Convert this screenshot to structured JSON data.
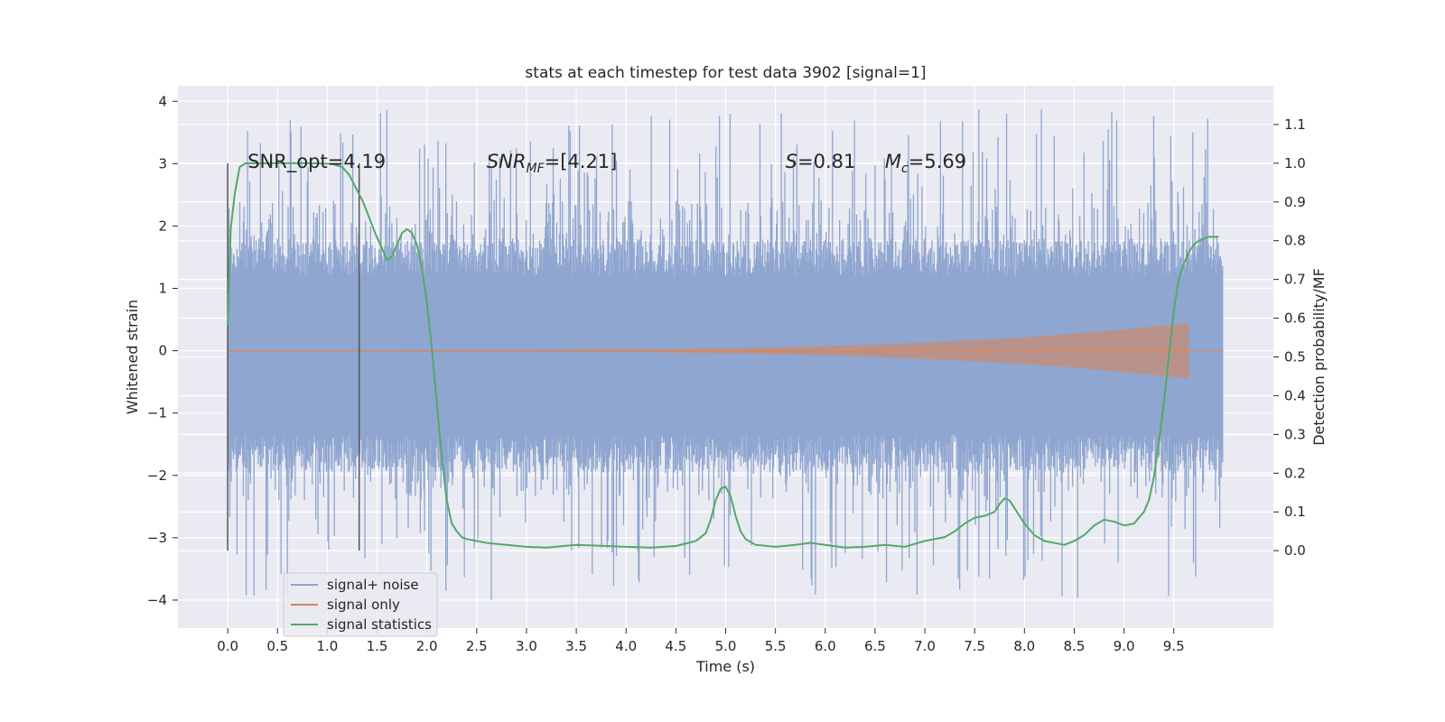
{
  "chart_data": {
    "type": "line",
    "title": "stats at each timestep for test data 3902 [signal=1]",
    "xlabel": "Time (s)",
    "ylabel": "Whitened strain",
    "y2label": "Detection probability/MF",
    "xlim": [
      -0.5,
      10.5
    ],
    "ylim": [
      -4.45,
      4.25
    ],
    "y2lim": [
      -0.2,
      1.2
    ],
    "x_ticks": [
      "0.0",
      "0.5",
      "1.0",
      "1.5",
      "2.0",
      "2.5",
      "3.0",
      "3.5",
      "4.0",
      "4.5",
      "5.0",
      "5.5",
      "6.0",
      "6.5",
      "7.0",
      "7.5",
      "8.0",
      "8.5",
      "9.0",
      "9.5"
    ],
    "y_ticks": [
      "4",
      "3",
      "2",
      "1",
      "0",
      "−1",
      "−2",
      "−3",
      "−4"
    ],
    "y2_ticks": [
      "1.1",
      "1.0",
      "0.9",
      "0.8",
      "0.7",
      "0.6",
      "0.5",
      "0.4",
      "0.3",
      "0.2",
      "0.1",
      "0.0"
    ],
    "grid": true,
    "legend_position": "lower-left",
    "annotations": {
      "snr_opt": "SNR_opt=4.19",
      "snr_mf_italic": "SNR",
      "snr_mf_sub": "MF",
      "snr_mf_rest": "=[4.21]",
      "s_italic": "S",
      "s_rest": "=0.81",
      "mc_italic": "M",
      "mc_sub": "c",
      "mc_rest": "=5.69"
    },
    "vlines": [
      0.0,
      1.32
    ],
    "series": [
      {
        "name": "signal+ noise",
        "color": "#8fa6d0",
        "axis": "left",
        "x_range": [
          0.0,
          9.99
        ],
        "core_band": [
          -1.35,
          1.2
        ],
        "peak_range": [
          -4.0,
          3.9
        ]
      },
      {
        "name": "signal only",
        "color": "#dd8452",
        "axis": "left",
        "chirp": {
          "t_start": 0.0,
          "t_merge": 9.65,
          "t_end": 9.99,
          "amp_start": 0.01,
          "amp_peak": 0.45
        }
      },
      {
        "name": "signal statistics",
        "color": "#55a868",
        "axis": "right",
        "x": [
          0.0,
          0.03,
          0.07,
          0.12,
          0.18,
          0.3,
          0.5,
          0.7,
          0.9,
          1.05,
          1.15,
          1.22,
          1.3,
          1.36,
          1.42,
          1.48,
          1.55,
          1.6,
          1.65,
          1.7,
          1.75,
          1.8,
          1.85,
          1.9,
          1.95,
          2.0,
          2.05,
          2.1,
          2.15,
          2.2,
          2.25,
          2.3,
          2.35,
          2.4,
          2.5,
          2.6,
          2.8,
          3.0,
          3.2,
          3.5,
          3.8,
          4.0,
          4.25,
          4.5,
          4.7,
          4.8,
          4.85,
          4.9,
          4.95,
          5.0,
          5.05,
          5.1,
          5.15,
          5.2,
          5.3,
          5.5,
          5.7,
          5.85,
          6.0,
          6.2,
          6.4,
          6.6,
          6.8,
          7.0,
          7.2,
          7.3,
          7.4,
          7.5,
          7.6,
          7.7,
          7.75,
          7.8,
          7.85,
          7.9,
          8.0,
          8.1,
          8.2,
          8.3,
          8.4,
          8.5,
          8.6,
          8.7,
          8.8,
          8.9,
          9.0,
          9.1,
          9.2,
          9.25,
          9.3,
          9.35,
          9.4,
          9.45,
          9.5,
          9.55,
          9.6,
          9.65,
          9.7,
          9.75,
          9.8,
          9.85,
          9.9,
          9.95
        ],
        "y": [
          0.58,
          0.83,
          0.92,
          0.99,
          1.0,
          1.0,
          1.0,
          1.0,
          1.0,
          0.998,
          0.99,
          0.97,
          0.93,
          0.9,
          0.86,
          0.82,
          0.78,
          0.75,
          0.76,
          0.79,
          0.82,
          0.83,
          0.82,
          0.79,
          0.73,
          0.64,
          0.52,
          0.38,
          0.24,
          0.13,
          0.07,
          0.05,
          0.035,
          0.03,
          0.025,
          0.02,
          0.015,
          0.01,
          0.008,
          0.015,
          0.012,
          0.01,
          0.008,
          0.012,
          0.025,
          0.045,
          0.08,
          0.13,
          0.16,
          0.165,
          0.14,
          0.09,
          0.05,
          0.03,
          0.015,
          0.01,
          0.015,
          0.02,
          0.015,
          0.008,
          0.01,
          0.015,
          0.01,
          0.025,
          0.035,
          0.05,
          0.07,
          0.085,
          0.09,
          0.1,
          0.12,
          0.135,
          0.13,
          0.11,
          0.07,
          0.04,
          0.025,
          0.02,
          0.015,
          0.025,
          0.04,
          0.065,
          0.08,
          0.075,
          0.065,
          0.07,
          0.1,
          0.13,
          0.19,
          0.28,
          0.38,
          0.5,
          0.62,
          0.7,
          0.74,
          0.77,
          0.79,
          0.8,
          0.805,
          0.81,
          0.81,
          0.81
        ]
      }
    ]
  }
}
